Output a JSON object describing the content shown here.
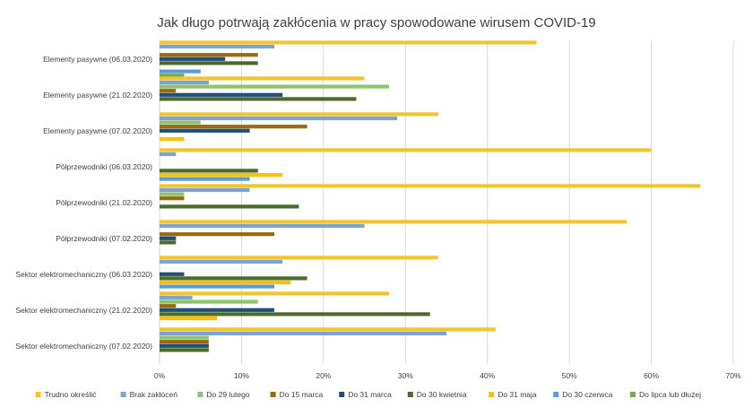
{
  "chart_data": {
    "type": "bar",
    "orientation": "horizontal",
    "title": "Jak długo potrwają zakłócenia w pracy spowodowane wirusem COVID-19",
    "xlabel": "",
    "ylabel": "",
    "xlim": [
      0,
      70
    ],
    "x_ticks": [
      "0%",
      "10%",
      "20%",
      "30%",
      "40%",
      "50%",
      "60%",
      "70%"
    ],
    "grid": true,
    "legend_position": "bottom",
    "categories": [
      "Elementy pasywne (06.03.2020)",
      "Elementy pasywne (21.02.2020)",
      "Elementy pasywne (07.02.2020)",
      "Półprzewodniki (06.03.2020)",
      "Półprzewodniki (21.02.2020)",
      "Półprzewodniki (07.02.2020)",
      "Sektor elektromechaniczny (06.03.2020)",
      "Sektor elektromechaniczny (21.02.2020)",
      "Sektor elektromechaniczny (07.02.2020)"
    ],
    "series": [
      {
        "name": "Trudno określić",
        "color": "#f2c431",
        "values": [
          46,
          25,
          34,
          60,
          66,
          57,
          34,
          28,
          41
        ]
      },
      {
        "name": "Brak zakłóceń",
        "color": "#7aa4d4",
        "values": [
          14,
          6,
          29,
          2,
          11,
          25,
          15,
          4,
          35
        ]
      },
      {
        "name": "Do 29 lutego",
        "color": "#8fc46e",
        "values": [
          0,
          28,
          5,
          0,
          3,
          0,
          0,
          12,
          6
        ]
      },
      {
        "name": "Do 15 marca",
        "color": "#9b6a0f",
        "values": [
          12,
          2,
          18,
          0,
          3,
          14,
          0,
          2,
          6
        ]
      },
      {
        "name": "Do 31 marca",
        "color": "#1f4e79",
        "values": [
          8,
          15,
          11,
          0,
          0,
          2,
          3,
          14,
          6
        ]
      },
      {
        "name": "Do 30 kwietnia",
        "color": "#4c6b2a",
        "values": [
          12,
          24,
          0,
          12,
          17,
          2,
          18,
          33,
          6
        ]
      },
      {
        "name": "Do 31 maja",
        "color": "#ffc000",
        "values": [
          0,
          0,
          3,
          15,
          0,
          0,
          16,
          7,
          0
        ]
      },
      {
        "name": "Do 30 czerwca",
        "color": "#5b9bd5",
        "values": [
          5,
          0,
          0,
          11,
          0,
          0,
          14,
          0,
          0
        ]
      },
      {
        "name": "Do lipca lub dłużej",
        "color": "#70ad47",
        "values": [
          3,
          0,
          0,
          0,
          0,
          0,
          0,
          0,
          0
        ]
      }
    ]
  }
}
